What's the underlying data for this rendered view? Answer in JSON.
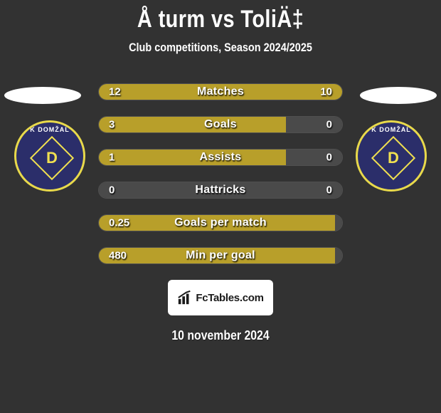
{
  "title": "Å turm vs ToliÄ‡",
  "subtitle": "Club competitions, Season 2024/2025",
  "date": "10 november 2024",
  "colors": {
    "background": "#323232",
    "left_bar": "#b89f2a",
    "right_bar": "#4a4a4a",
    "bar_empty": "#3f3f3f",
    "text": "#ffffff",
    "badge_bg": "#2b2e6a",
    "badge_accent": "#f0e050",
    "badge_border": "#e8d94b"
  },
  "badge": {
    "arc_text": "K DOMŽAL",
    "letter": "D"
  },
  "logo": {
    "text": "FcTables.com"
  },
  "stats": [
    {
      "label": "Matches",
      "left_value": "12",
      "right_value": "10",
      "left_pct": 77,
      "right_pct": 23,
      "left_color": "#b89f2a",
      "right_color": "#b89f2a"
    },
    {
      "label": "Goals",
      "left_value": "3",
      "right_value": "0",
      "left_pct": 77,
      "right_pct": 23,
      "left_color": "#b89f2a",
      "right_color": "#4a4a4a"
    },
    {
      "label": "Assists",
      "left_value": "1",
      "right_value": "0",
      "left_pct": 77,
      "right_pct": 23,
      "left_color": "#b89f2a",
      "right_color": "#4a4a4a"
    },
    {
      "label": "Hattricks",
      "left_value": "0",
      "right_value": "0",
      "left_pct": 50,
      "right_pct": 50,
      "left_color": "#4a4a4a",
      "right_color": "#4a4a4a"
    },
    {
      "label": "Goals per match",
      "left_value": "0.25",
      "right_value": "",
      "left_pct": 97,
      "right_pct": 3,
      "left_color": "#b89f2a",
      "right_color": "#4a4a4a"
    },
    {
      "label": "Min per goal",
      "left_value": "480",
      "right_value": "",
      "left_pct": 97,
      "right_pct": 3,
      "left_color": "#b89f2a",
      "right_color": "#4a4a4a"
    }
  ]
}
